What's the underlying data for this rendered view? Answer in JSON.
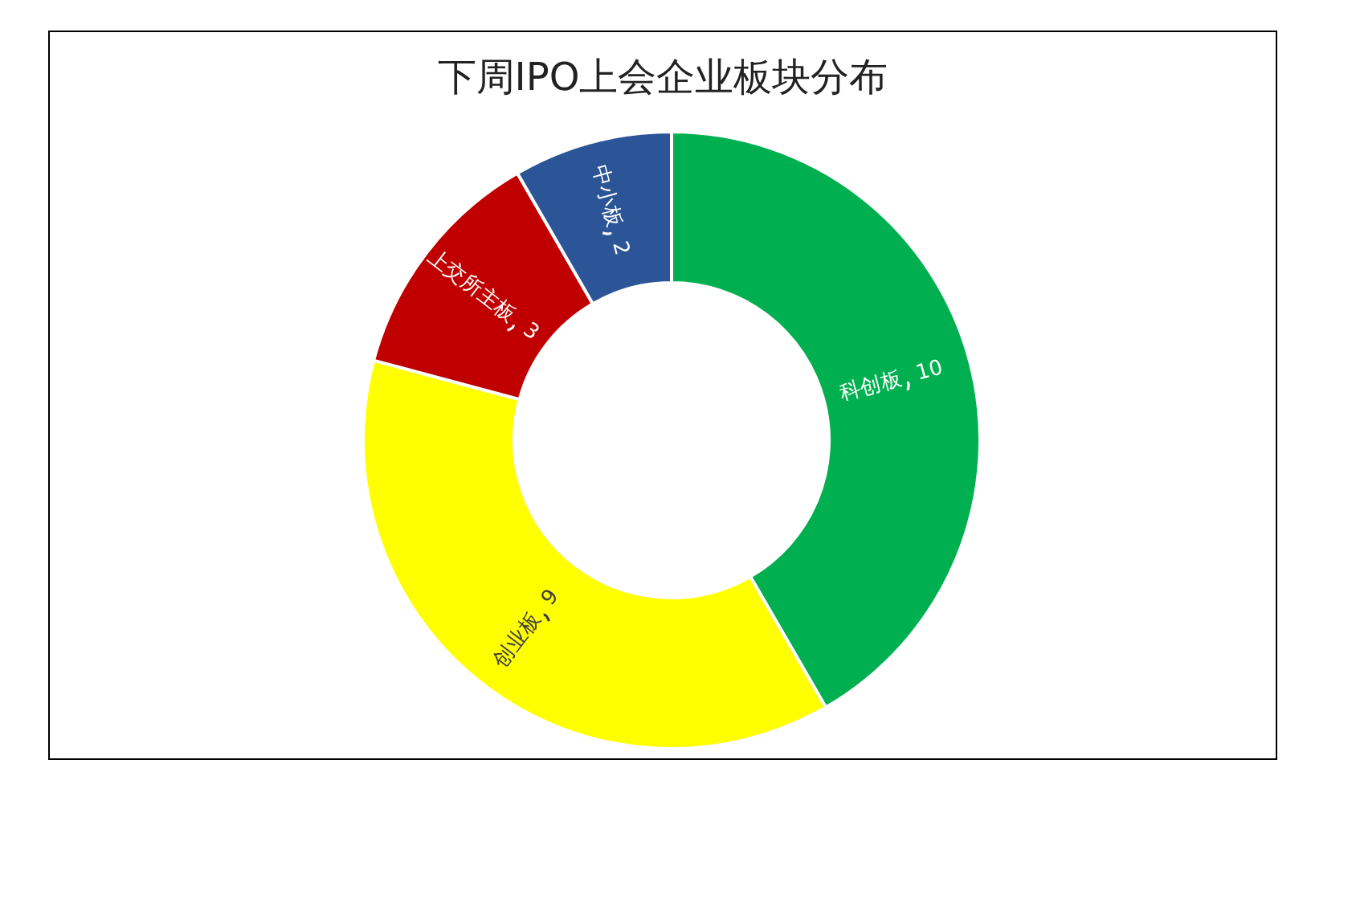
{
  "chart_data": {
    "type": "donut",
    "title": "下周IPO上会企业板块分布",
    "categories": [
      "科创板",
      "创业板",
      "上交所主板",
      "中小板"
    ],
    "values": [
      10,
      9,
      3,
      2
    ],
    "colors": [
      "#00b050",
      "#ffff00",
      "#c00000",
      "#2b5597"
    ],
    "data_labels": true
  }
}
